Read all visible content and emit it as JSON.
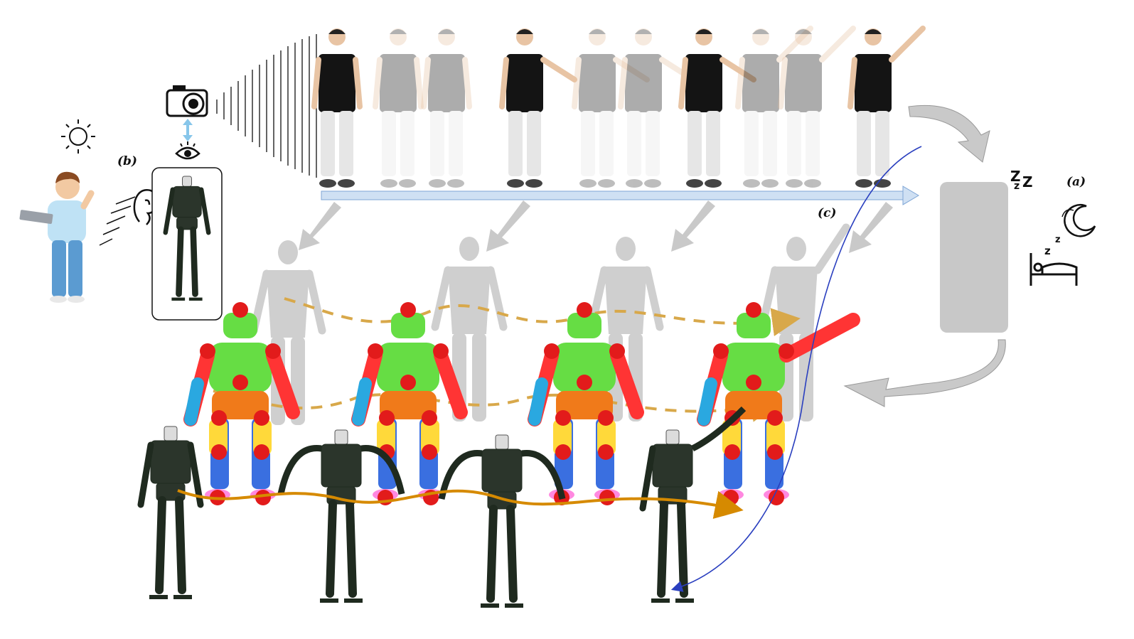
{
  "labels": {
    "a": "(a)",
    "b": "(b)",
    "c": "(c)"
  },
  "sleep_text": {
    "big": "Z",
    "small": "z"
  },
  "icons": [
    "sun-icon",
    "person-with-laptop-icon",
    "camera-icon",
    "eye-icon",
    "ear-icon",
    "moon-icon",
    "bed-icon",
    "sleep-z-icon"
  ],
  "colors": {
    "timeline_arrow": "#cfe0f3",
    "timeline_stroke": "#7fa6d6",
    "gray_arrow": "#c9c9c9",
    "trajectory_gold": "#d8a84a",
    "trajectory_orange": "#d68a00",
    "blue_curve": "#2a3fbf",
    "robot_panel": "#c8c8c8",
    "sim_body": "#66dd44",
    "sim_joint": "#e21b1b",
    "sim_pelvis": "#f07a1a",
    "sim_leg": "#3a6fe0",
    "human_shirt": "#141414",
    "human_pants": "#e6e6e6",
    "mesh_gray": "#cfcfcf"
  }
}
